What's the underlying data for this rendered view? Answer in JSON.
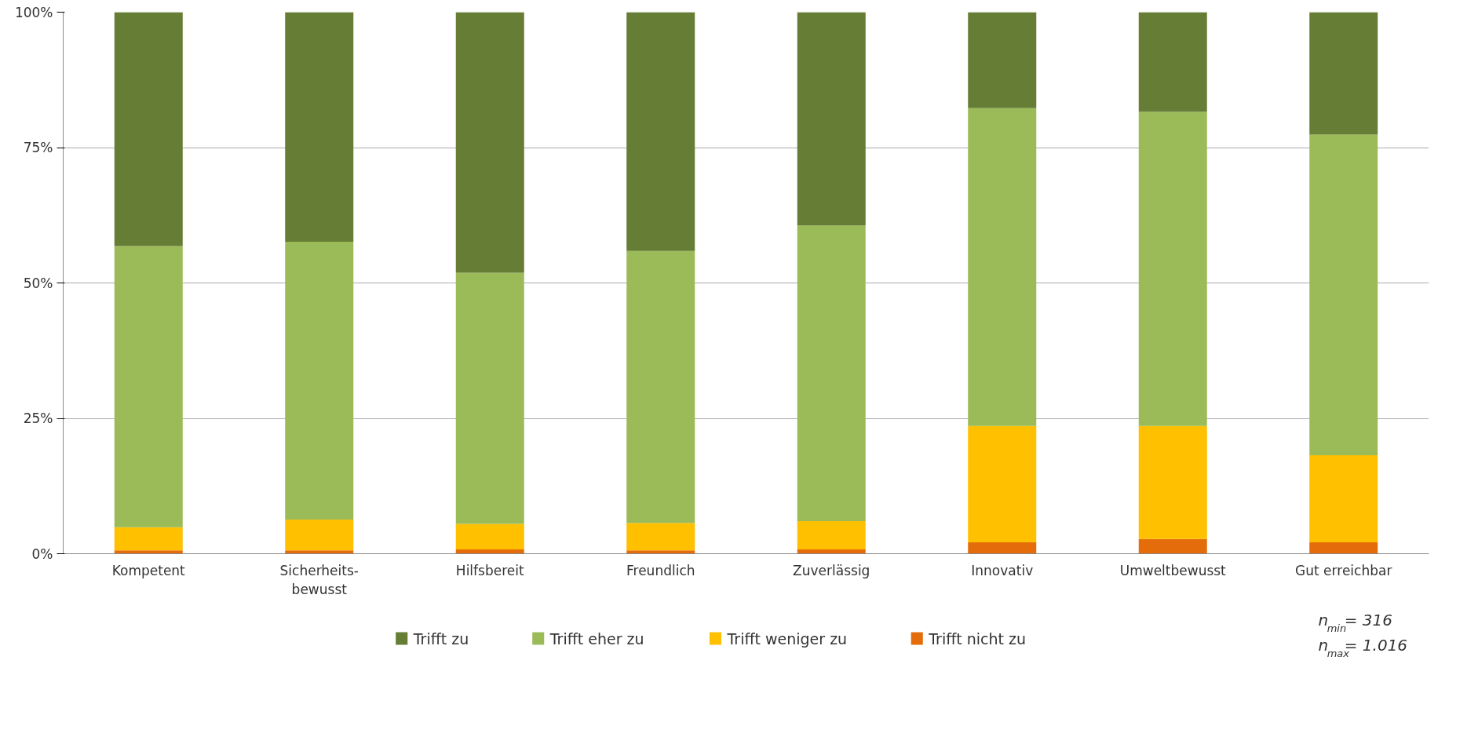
{
  "chart_data": {
    "type": "bar",
    "stacked": true,
    "categories": [
      "Kompetent",
      "Sicherheits-\nbewusst",
      "Hilfsbereit",
      "Freundlich",
      "Zuverlässig",
      "Innovativ",
      "Umweltbewusst",
      "Gut erreichbar"
    ],
    "series": [
      {
        "name": "Trifft nicht zu",
        "color": "#e46c0a",
        "values": [
          0.6,
          0.6,
          0.8,
          0.6,
          0.8,
          2.1,
          2.7,
          2.1
        ]
      },
      {
        "name": "Trifft weniger zu",
        "color": "#ffc000",
        "values": [
          4.3,
          5.7,
          4.7,
          5.1,
          5.2,
          21.5,
          20.9,
          16.1
        ]
      },
      {
        "name": "Trifft eher zu",
        "color": "#9bbb59",
        "values": [
          51.9,
          51.3,
          46.4,
          50.2,
          54.6,
          58.7,
          58.0,
          59.2
        ]
      },
      {
        "name": "Trifft zu",
        "color": "#657d34",
        "values": [
          43.2,
          42.4,
          48.1,
          44.1,
          39.4,
          17.7,
          18.4,
          22.6
        ]
      }
    ],
    "ylim": [
      0,
      100
    ],
    "yticks": [
      {
        "value": 0,
        "label": "0%"
      },
      {
        "value": 25,
        "label": "25%"
      },
      {
        "value": 50,
        "label": "50%"
      },
      {
        "value": 75,
        "label": "75%"
      },
      {
        "value": 100,
        "label": "100%"
      }
    ],
    "grid": "y",
    "legend": "bottom",
    "annotations": [
      "n$_{min}$= 316",
      "n$_{max}$= 1.016"
    ]
  }
}
